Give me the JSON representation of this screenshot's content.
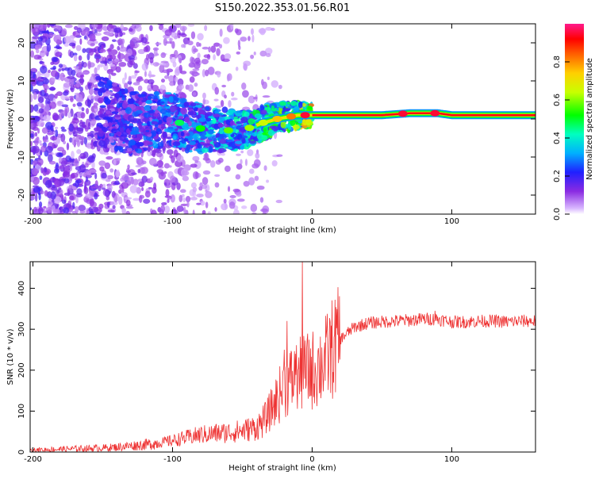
{
  "figure": {
    "title": "S150.2022.353.01.56.R01"
  },
  "chart_data": [
    {
      "type": "heatmap",
      "xlabel": "Height of straight line (km)",
      "ylabel": "Frequency (Hz)",
      "xlim": [
        -202,
        160
      ],
      "ylim": [
        -25,
        25
      ],
      "xticks": [
        -200,
        -100,
        0,
        100
      ],
      "yticks": [
        -20,
        -10,
        0,
        10,
        20
      ],
      "colorbar": {
        "label": "Normalized spectral amplitude",
        "range": [
          0,
          1
        ],
        "ticks": [
          0.0,
          0.2,
          0.4,
          0.6,
          0.8
        ],
        "tick_labels": [
          "0.0",
          "0.2",
          "0.4",
          "0.6",
          "0.8"
        ]
      },
      "ridge": [
        {
          "x": -150,
          "freq": 2,
          "amp": 0.25
        },
        {
          "x": -130,
          "freq": -1,
          "amp": 0.3
        },
        {
          "x": -100,
          "freq": 0,
          "amp": 0.35
        },
        {
          "x": -90,
          "freq": -2,
          "amp": 0.4
        },
        {
          "x": -70,
          "freq": -3,
          "amp": 0.45
        },
        {
          "x": -50,
          "freq": -3,
          "amp": 0.5
        },
        {
          "x": -35,
          "freq": -1,
          "amp": 0.55
        },
        {
          "x": -25,
          "freq": 0,
          "amp": 0.65
        },
        {
          "x": -10,
          "freq": 1,
          "amp": 0.75
        },
        {
          "x": 0,
          "freq": 1,
          "amp": 0.95
        },
        {
          "x": 50,
          "freq": 1,
          "amp": 0.95
        },
        {
          "x": 70,
          "freq": 1.5,
          "amp": 0.95
        },
        {
          "x": 90,
          "freq": 1.5,
          "amp": 0.95
        },
        {
          "x": 100,
          "freq": 1,
          "amp": 0.95
        },
        {
          "x": 160,
          "freq": 1,
          "amp": 0.95
        }
      ]
    },
    {
      "type": "line",
      "xlabel": "Height of straight line (km)",
      "ylabel": "SNR (10 * v/v)",
      "xlim": [
        -202,
        160
      ],
      "ylim": [
        0,
        465
      ],
      "xticks": [
        -200,
        -100,
        0,
        100
      ],
      "yticks": [
        0,
        100,
        200,
        300,
        400
      ],
      "color": "#ee3333",
      "x": [
        -202,
        -190,
        -180,
        -170,
        -160,
        -150,
        -140,
        -130,
        -120,
        -110,
        -100,
        -90,
        -80,
        -70,
        -60,
        -50,
        -40,
        -35,
        -30,
        -25,
        -20,
        -15,
        -10,
        -5,
        0,
        5,
        10,
        15,
        20,
        25,
        30,
        40,
        50,
        60,
        70,
        80,
        90,
        100,
        110,
        120,
        130,
        140,
        150,
        160
      ],
      "y": [
        5,
        6,
        7,
        8,
        9,
        10,
        12,
        15,
        18,
        22,
        28,
        35,
        42,
        45,
        48,
        52,
        60,
        75,
        100,
        130,
        160,
        175,
        185,
        195,
        200,
        210,
        230,
        255,
        275,
        290,
        305,
        315,
        318,
        320,
        322,
        325,
        325,
        318,
        318,
        320,
        320,
        318,
        320,
        320
      ],
      "spikes": [
        {
          "x": -7,
          "y": 465
        },
        {
          "x": -18,
          "y": 320
        },
        {
          "x": -20,
          "y": 250
        },
        {
          "x": -12,
          "y": 240
        },
        {
          "x": 10,
          "y": 280
        },
        {
          "x": 88,
          "y": 345
        }
      ]
    }
  ]
}
